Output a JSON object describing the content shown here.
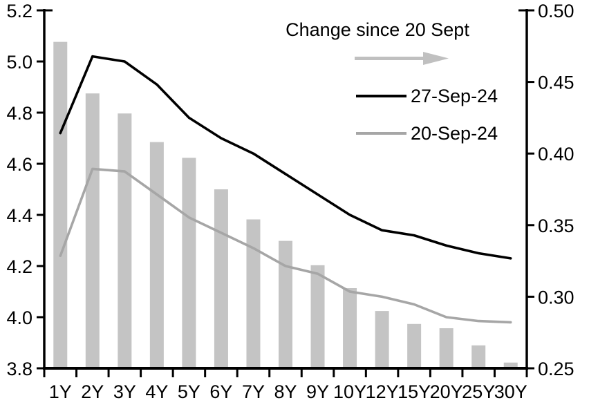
{
  "chart_data": {
    "type": "combo",
    "title": "",
    "categories": [
      "1Y",
      "2Y",
      "3Y",
      "4Y",
      "5Y",
      "6Y",
      "7Y",
      "8Y",
      "9Y",
      "10Y",
      "12Y",
      "15Y",
      "20Y",
      "25Y",
      "30Y"
    ],
    "series": [
      {
        "name": "Change since 20 Sept",
        "type": "bar",
        "axis": "right",
        "color": "#c4c4c4",
        "values": [
          0.478,
          0.442,
          0.428,
          0.408,
          0.397,
          0.375,
          0.354,
          0.339,
          0.322,
          0.306,
          0.29,
          0.281,
          0.278,
          0.266,
          0.254
        ]
      },
      {
        "name": "27-Sep-24",
        "type": "line",
        "axis": "left",
        "color": "#000000",
        "values": [
          4.72,
          5.02,
          5.0,
          4.91,
          4.78,
          4.7,
          4.64,
          4.56,
          4.48,
          4.4,
          4.34,
          4.32,
          4.28,
          4.25,
          4.23
        ]
      },
      {
        "name": "20-Sep-24",
        "type": "line",
        "axis": "left",
        "color": "#a6a6a6",
        "values": [
          4.24,
          4.58,
          4.57,
          4.48,
          4.39,
          4.33,
          4.27,
          4.2,
          4.17,
          4.1,
          4.08,
          4.05,
          4.0,
          3.985,
          3.98
        ]
      }
    ],
    "left_axis": {
      "min": 3.8,
      "max": 5.2,
      "step": 0.2,
      "tick_labels": [
        "5.2",
        "5.0",
        "4.8",
        "4.6",
        "4.4",
        "4.2",
        "4.0",
        "3.8"
      ]
    },
    "right_axis": {
      "min": 0.25,
      "max": 0.5,
      "step": 0.05,
      "tick_labels": [
        "0.50",
        "0.45",
        "0.40",
        "0.35",
        "0.30",
        "0.25"
      ]
    },
    "legend": {
      "title": "Change since 20 Sept",
      "arrow_icon": "right-arrow",
      "arrow_color": "#c0c0c0",
      "entries": [
        {
          "label": "27-Sep-24",
          "color": "#000000"
        },
        {
          "label": "20-Sep-24",
          "color": "#a6a6a6"
        }
      ],
      "position": "top-right-inside"
    },
    "grid": false,
    "bar_gap_ratio": 0.57
  },
  "colors": {
    "background": "#ffffff",
    "axis": "#000000"
  }
}
